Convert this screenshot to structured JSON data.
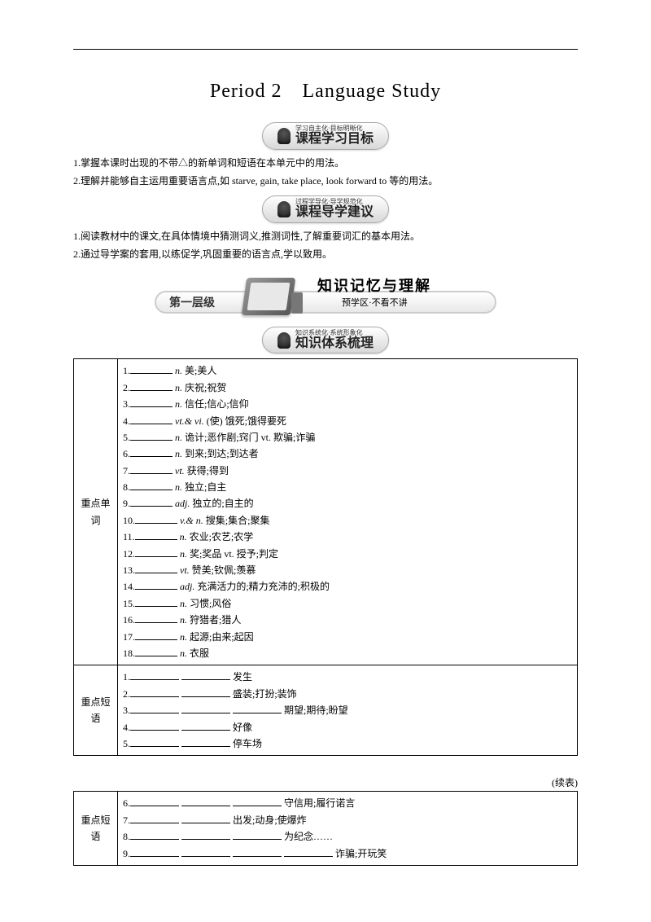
{
  "title": "Period 2　Language Study",
  "banner1": {
    "small": "学习自主化·目标明晰化",
    "big": "课程学习目标"
  },
  "goals": [
    "1.掌握本课时出现的不带△的新单词和短语在本单元中的用法。",
    "2.理解并能够自主运用重要语言点,如 starve, gain, take place, look forward to 等的用法。"
  ],
  "banner2": {
    "small": "过程学导化·导学规范化",
    "big": "课程导学建议"
  },
  "advice": [
    "1.阅读教材中的课文,在具体情境中猜测词义,推测词性,了解重要词汇的基本用法。",
    "2.通过导学案的套用,以练促学,巩固重要的语言点,学以致用。"
  ],
  "level": {
    "badge": "第一层级",
    "title": "知识记忆与理解",
    "sub": "预学区·不看不讲"
  },
  "banner3": {
    "small": "知识系统化·系统形象化",
    "big": "知识体系梳理"
  },
  "labels": {
    "words": "重点单词",
    "phrases": "重点短语"
  },
  "words": [
    {
      "n": "1.",
      "pos": "n.",
      "def": "美;美人"
    },
    {
      "n": "2.",
      "pos": "n.",
      "def": "庆祝;祝贺"
    },
    {
      "n": "3.",
      "pos": "n.",
      "def": "信任;信心;信仰"
    },
    {
      "n": "4.",
      "pos": "vt.& vi.",
      "def": "(使) 饿死;饿得要死"
    },
    {
      "n": "5.",
      "pos": "n.",
      "def": "诡计;恶作剧;窍门  vt.  欺骗;诈骗"
    },
    {
      "n": "6.",
      "pos": "n.",
      "def": "到来;到达;到达者"
    },
    {
      "n": "7.",
      "pos": "vt.",
      "def": "获得;得到"
    },
    {
      "n": "8.",
      "pos": "n.",
      "def": "独立;自主"
    },
    {
      "n": "9.",
      "pos": "adj.",
      "def": "独立的;自主的"
    },
    {
      "n": "10.",
      "pos": "v.& n.",
      "def": "搜集;集合;聚集"
    },
    {
      "n": "11.",
      "pos": "n.",
      "def": "农业;农艺;农学"
    },
    {
      "n": "12.",
      "pos": "n.",
      "def": "奖;奖品 vt. 授予;判定"
    },
    {
      "n": "13.",
      "pos": "vt.",
      "def": "赞美;钦佩;羡慕"
    },
    {
      "n": "14.",
      "pos": "adj.",
      "def": "充满活力的;精力充沛的;积极的"
    },
    {
      "n": "15.",
      "pos": "n.",
      "def": "习惯;风俗"
    },
    {
      "n": "16.",
      "pos": "n.",
      "def": "狩猎者;猎人"
    },
    {
      "n": "17.",
      "pos": "n.",
      "def": "起源;由来;起因"
    },
    {
      "n": "18.",
      "pos": "n.",
      "def": "衣服"
    }
  ],
  "phrases1": [
    {
      "n": "1.",
      "blanks": 2,
      "def": "发生"
    },
    {
      "n": "2.",
      "blanks": 2,
      "def": "盛装;打扮;装饰"
    },
    {
      "n": "3.",
      "blanks": 3,
      "def": "期望;期待;盼望"
    },
    {
      "n": "4.",
      "blanks": 2,
      "def": "好像"
    },
    {
      "n": "5.",
      "blanks": 2,
      "def": "停车场"
    }
  ],
  "contLabel": "(续表)",
  "phrases2": [
    {
      "n": "6.",
      "blanks": 3,
      "def": "守信用;履行诺言"
    },
    {
      "n": "7.",
      "blanks": 2,
      "def": "出发;动身;使爆炸"
    },
    {
      "n": "8.",
      "blanks": 3,
      "def": "为纪念……"
    },
    {
      "n": "9.",
      "blanks": 4,
      "def": "诈骗;开玩笑"
    }
  ]
}
